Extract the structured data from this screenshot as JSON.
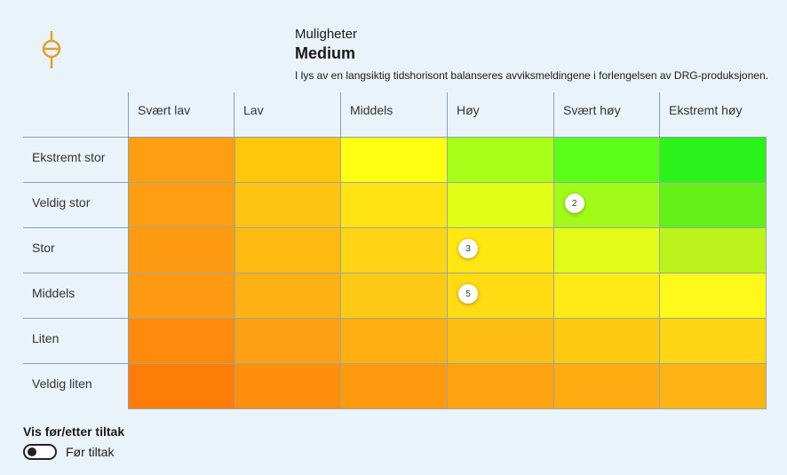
{
  "header": {
    "category": "Muligheter",
    "level": "Medium",
    "description": "I lys av en langsiktig tidshorisont balanseres avviksmeldingene i forlengelsen av DRG-produksjonen."
  },
  "logo_icon": "balance-scale-icon",
  "accent_color": "#e0a030",
  "matrix": {
    "columns": [
      "Svært lav",
      "Lav",
      "Middels",
      "Høy",
      "Svært høy",
      "Ekstremt høy"
    ],
    "rows": [
      "Ekstremt stor",
      "Veldig stor",
      "Stor",
      "Middels",
      "Liten",
      "Veldig liten"
    ],
    "colors": [
      [
        "#ff9e12",
        "#ffc70c",
        "#ffff12",
        "#a8ff18",
        "#5cff18",
        "#2cf21c"
      ],
      [
        "#ff9e12",
        "#ffc412",
        "#ffe314",
        "#e0ff16",
        "#a2fa18",
        "#62f018"
      ],
      [
        "#ff9b10",
        "#ffbb12",
        "#ffd516",
        "#ffe714",
        "#e3fb18",
        "#bcf31c"
      ],
      [
        "#ff9a12",
        "#ffb214",
        "#ffca16",
        "#ffdb14",
        "#ffe916",
        "#fdf91a"
      ],
      [
        "#ff8a0c",
        "#ffa014",
        "#ffaf12",
        "#ffbe14",
        "#ffca12",
        "#ffd614"
      ],
      [
        "#ff7d08",
        "#ff8f0c",
        "#ff9a0e",
        "#ffa310",
        "#ffac12",
        "#ffb416"
      ]
    ],
    "markers": [
      {
        "row": 1,
        "col": 4,
        "label": "2"
      },
      {
        "row": 2,
        "col": 3,
        "label": "3"
      },
      {
        "row": 3,
        "col": 3,
        "label": "5"
      }
    ]
  },
  "toggle": {
    "title": "Vis før/etter tiltak",
    "label": "Før tiltak",
    "state": "off"
  }
}
